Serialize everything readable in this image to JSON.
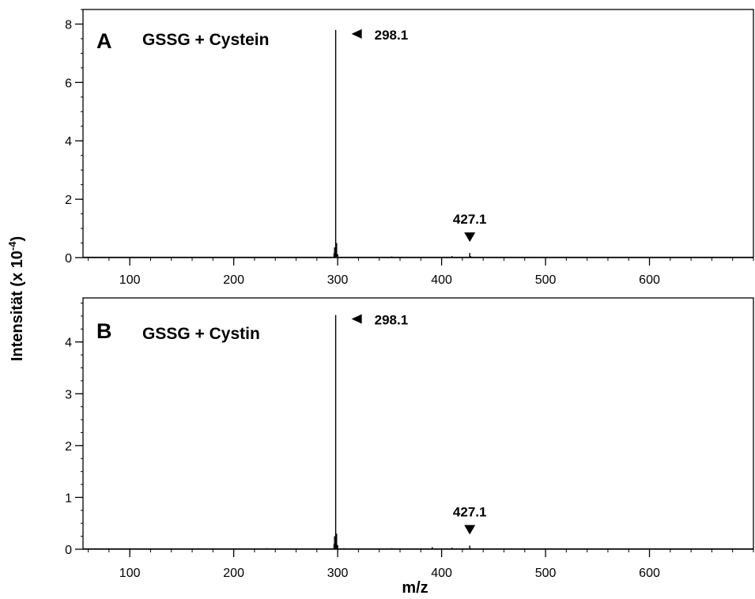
{
  "chart_data": {
    "type": "line",
    "xlabel": "m/z",
    "ylabel_main": "Intensität (x 10",
    "ylabel_sup": "-4",
    "ylabel_close": ")",
    "xlim": [
      55,
      700
    ],
    "x_ticks": [
      100,
      200,
      300,
      400,
      500,
      600
    ],
    "x_tick_labels": [
      "100",
      "200",
      "300",
      "400",
      "500",
      "600"
    ],
    "panels": [
      {
        "label": "A",
        "title": "GSSG + Cystein",
        "ylim": [
          0,
          8.5
        ],
        "y_ticks": [
          0,
          2,
          4,
          6,
          8
        ],
        "y_tick_labels": [
          "0",
          "2",
          "4",
          "6",
          "8"
        ],
        "peaks": [
          {
            "x": 296.5,
            "y": 0.15
          },
          {
            "x": 297.0,
            "y": 0.35
          },
          {
            "x": 298.1,
            "y": 7.8
          },
          {
            "x": 299.0,
            "y": 0.5
          },
          {
            "x": 300.0,
            "y": 0.12
          },
          {
            "x": 352.0,
            "y": 0.04
          },
          {
            "x": 410.0,
            "y": 0.05
          },
          {
            "x": 427.1,
            "y": 0.16
          },
          {
            "x": 428.0,
            "y": 0.05
          }
        ],
        "annotations": [
          {
            "text": "298.1",
            "x": 298.1,
            "y": 7.8,
            "arrow": "left"
          },
          {
            "text": "427.1",
            "x": 427.1,
            "y": 0.16,
            "arrow": "down"
          }
        ]
      },
      {
        "label": "B",
        "title": "GSSG + Cystin",
        "ylim": [
          0,
          4.85
        ],
        "y_ticks": [
          0,
          1,
          2,
          3,
          4
        ],
        "y_tick_labels": [
          "0",
          "1",
          "2",
          "3",
          "4"
        ],
        "peaks": [
          {
            "x": 232.0,
            "y": 0.02
          },
          {
            "x": 296.5,
            "y": 0.1
          },
          {
            "x": 297.0,
            "y": 0.25
          },
          {
            "x": 298.1,
            "y": 4.52
          },
          {
            "x": 299.0,
            "y": 0.3
          },
          {
            "x": 300.0,
            "y": 0.08
          },
          {
            "x": 306.0,
            "y": 0.02
          },
          {
            "x": 352.0,
            "y": 0.02
          },
          {
            "x": 391.0,
            "y": 0.04
          },
          {
            "x": 410.0,
            "y": 0.03
          },
          {
            "x": 427.1,
            "y": 0.07
          },
          {
            "x": 428.0,
            "y": 0.02
          }
        ],
        "annotations": [
          {
            "text": "298.1",
            "x": 298.1,
            "y": 4.52,
            "arrow": "left"
          },
          {
            "text": "427.1",
            "x": 427.1,
            "y": 0.07,
            "arrow": "down"
          }
        ]
      }
    ]
  }
}
